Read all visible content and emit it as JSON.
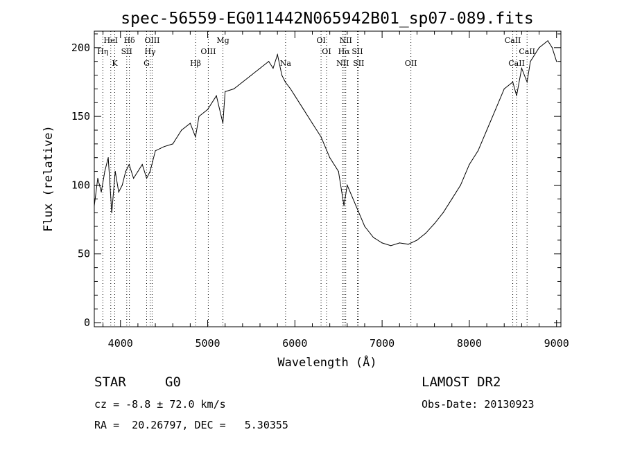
{
  "chart_data": {
    "type": "line",
    "title": "spec-56559-EG011442N065942B01_sp07-089.fits",
    "xlabel": "Wavelength (Å)",
    "ylabel": "Flux (relative)",
    "xlim": [
      3700,
      9050
    ],
    "ylim": [
      -3,
      212
    ],
    "xticks": [
      4000,
      5000,
      6000,
      7000,
      8000,
      9000
    ],
    "yticks": [
      0,
      50,
      100,
      150,
      200
    ],
    "grid": false,
    "color": "#000000",
    "series": [
      {
        "x": [
          3700,
          3740,
          3780,
          3820,
          3860,
          3900,
          3940,
          3980,
          4020,
          4060,
          4100,
          4150,
          4200,
          4250,
          4300,
          4340,
          4400,
          4500,
          4600,
          4700,
          4800,
          4861,
          4900,
          5000,
          5100,
          5175,
          5200,
          5300,
          5400,
          5500,
          5600,
          5700,
          5750,
          5800,
          5850,
          5890,
          5950,
          6000,
          6100,
          6200,
          6300,
          6400,
          6500,
          6563,
          6600,
          6700,
          6800,
          6900,
          7000,
          7100,
          7200,
          7300,
          7400,
          7500,
          7600,
          7700,
          7800,
          7900,
          8000,
          8100,
          8200,
          8300,
          8400,
          8498,
          8542,
          8600,
          8662,
          8700,
          8800,
          8900,
          8950,
          9000
        ],
        "y": [
          85,
          105,
          95,
          110,
          120,
          80,
          110,
          95,
          100,
          110,
          115,
          105,
          110,
          115,
          105,
          110,
          125,
          128,
          130,
          140,
          145,
          135,
          150,
          155,
          165,
          145,
          168,
          170,
          175,
          180,
          185,
          190,
          185,
          195,
          180,
          175,
          170,
          165,
          155,
          145,
          135,
          120,
          110,
          85,
          100,
          85,
          70,
          62,
          58,
          56,
          58,
          57,
          60,
          65,
          72,
          80,
          90,
          100,
          115,
          125,
          140,
          155,
          170,
          175,
          165,
          185,
          175,
          190,
          200,
          205,
          200,
          190
        ]
      }
    ],
    "line_marks": [
      {
        "x": 3798,
        "label": "Hη",
        "row": 2
      },
      {
        "x": 3889,
        "label": "HeI",
        "row": 1
      },
      {
        "x": 3934,
        "label": "K",
        "row": 3
      },
      {
        "x": 4072,
        "label": "SII",
        "row": 2
      },
      {
        "x": 4102,
        "label": "Hδ",
        "row": 1
      },
      {
        "x": 4300,
        "label": "G",
        "row": 3
      },
      {
        "x": 4340,
        "label": "Hγ",
        "row": 2
      },
      {
        "x": 4363,
        "label": "OIII",
        "row": 1
      },
      {
        "x": 4861,
        "label": "Hβ",
        "row": 3
      },
      {
        "x": 5007,
        "label": "OIII",
        "row": 2
      },
      {
        "x": 5175,
        "label": "Mg",
        "row": 1
      },
      {
        "x": 5893,
        "label": "Na",
        "row": 3
      },
      {
        "x": 6300,
        "label": "OI",
        "row": 1
      },
      {
        "x": 6363,
        "label": "OI",
        "row": 2
      },
      {
        "x": 6548,
        "label": "NII",
        "row": 3
      },
      {
        "x": 6563,
        "label": "Hα",
        "row": 2
      },
      {
        "x": 6583,
        "label": "NII",
        "row": 1
      },
      {
        "x": 6717,
        "label": "SII",
        "row": 2
      },
      {
        "x": 6731,
        "label": "SII",
        "row": 3
      },
      {
        "x": 7330,
        "label": "OII",
        "row": 3
      },
      {
        "x": 8498,
        "label": "CaII",
        "row": 1
      },
      {
        "x": 8542,
        "label": "CaII",
        "row": 3
      },
      {
        "x": 8662,
        "label": "CaII",
        "row": 2
      }
    ]
  },
  "info": {
    "object_class": "STAR",
    "subclass": "G0",
    "survey": "LAMOST DR2",
    "redshift_text": "cz = -8.8 ± 72.0 km/s",
    "obs_date": "Obs-Date: 20130923",
    "coords": "RA =  20.26797, DEC =   5.30355"
  }
}
